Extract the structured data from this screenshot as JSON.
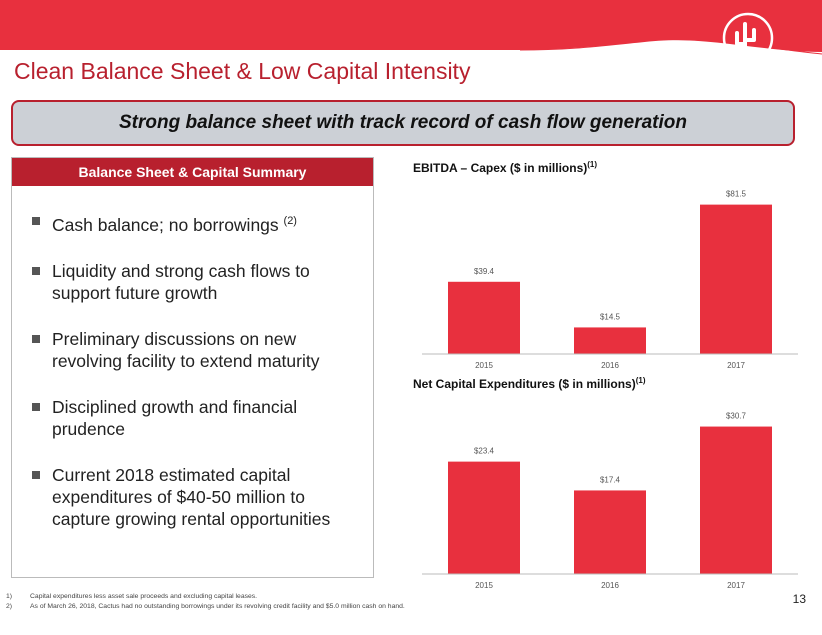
{
  "slide": {
    "title": "Clean Balance Sheet & Low Capital Intensity",
    "banner": "Strong balance sheet with track record of cash flow generation",
    "page_number": "13",
    "logo_icon": "cactus-icon"
  },
  "panel": {
    "header": "Balance Sheet & Capital Summary",
    "bullets": [
      {
        "text": "Cash balance; no borrowings ",
        "sup": "(2)"
      },
      {
        "text": "Liquidity and strong cash flows to support future growth",
        "sup": ""
      },
      {
        "text": "Preliminary discussions on new revolving facility to extend maturity",
        "sup": ""
      },
      {
        "text": "Disciplined growth and financial prudence",
        "sup": ""
      },
      {
        "text": "Current 2018 estimated capital expenditures of $40-50 million to capture growing rental opportunities",
        "sup": ""
      }
    ]
  },
  "colors": {
    "brand": "#e8303e",
    "title": "#b8202e",
    "banner_bg": "#ccd0d6"
  },
  "chart_data": [
    {
      "type": "bar",
      "title": "EBITDA – Capex ($ in millions)",
      "title_sup": "(1)",
      "categories": [
        "2015",
        "2016",
        "2017"
      ],
      "values": [
        39.4,
        14.5,
        81.5
      ],
      "data_labels": [
        "$39.4",
        "$14.5",
        "$81.5"
      ],
      "ylim": [
        0,
        90
      ],
      "grid": false
    },
    {
      "type": "bar",
      "title": "Net Capital Expenditures ($ in millions)",
      "title_sup": "(1)",
      "categories": [
        "2015",
        "2016",
        "2017"
      ],
      "values": [
        23.4,
        17.4,
        30.7
      ],
      "data_labels": [
        "$23.4",
        "$17.4",
        "$30.7"
      ],
      "ylim": [
        0,
        34
      ],
      "grid": false
    }
  ],
  "footnotes": [
    {
      "num": "1)",
      "text": "Capital expenditures less asset sale proceeds and excluding capital leases."
    },
    {
      "num": "2)",
      "text": "As of March 26, 2018, Cactus had no outstanding borrowings under its revolving credit facility and $5.0 million cash on hand."
    }
  ]
}
